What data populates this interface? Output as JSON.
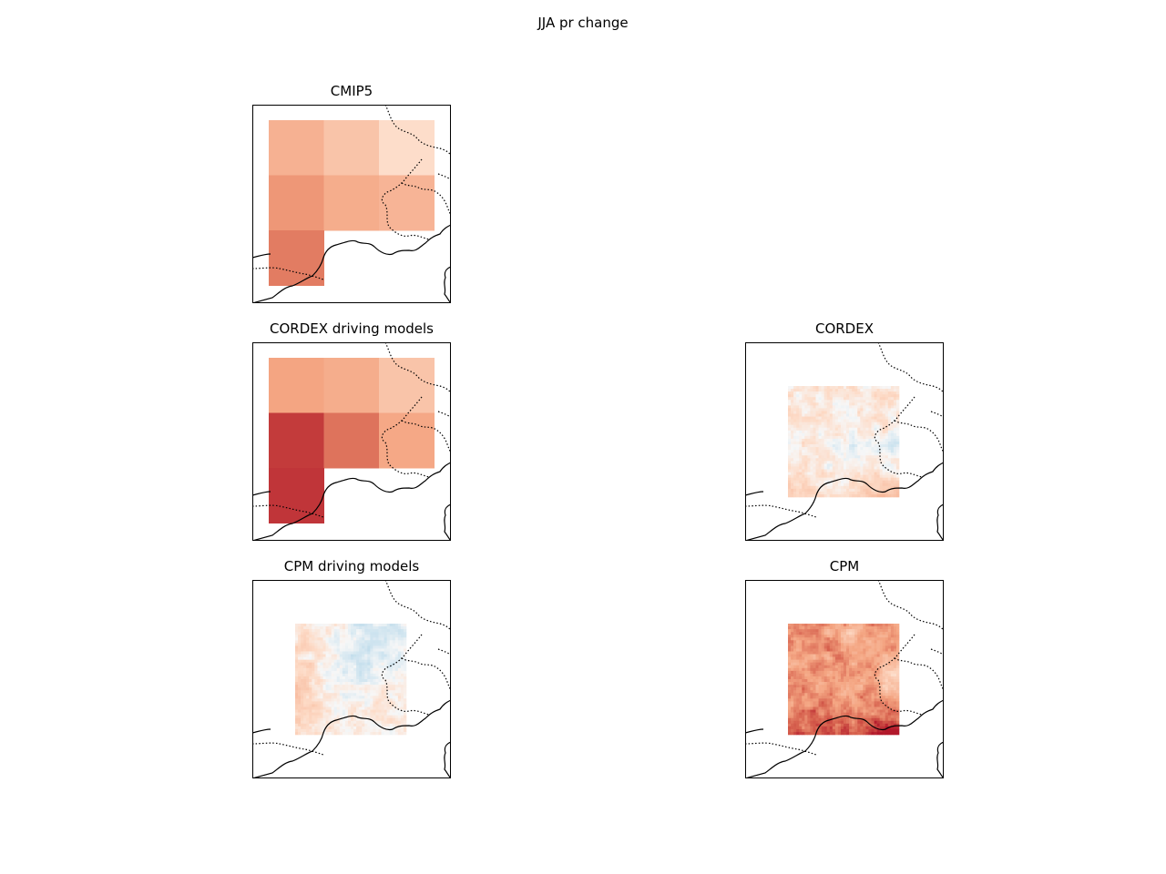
{
  "figure": {
    "title": "JJA pr change"
  },
  "colormap": {
    "name": "RdBu_r",
    "red": "#b2182b",
    "light_red": "#f4a582",
    "neutral": "#f7f7f7",
    "light_blue": "#92c5de",
    "blue": "#2166ac"
  },
  "chart_data": [
    {
      "type": "heatmap",
      "title": "CMIP5",
      "grid": false,
      "rows": 3,
      "cols": 3,
      "values": [
        [
          0.42,
          0.3,
          0.14
        ],
        [
          0.55,
          0.45,
          0.4
        ],
        [
          0.65,
          null,
          null
        ]
      ]
    },
    {
      "type": "heatmap",
      "title": "CORDEX driving models",
      "grid": false,
      "rows": 3,
      "cols": 3,
      "values": [
        [
          0.5,
          0.45,
          0.3
        ],
        [
          0.88,
          0.68,
          0.48
        ],
        [
          0.9,
          null,
          null
        ]
      ]
    },
    {
      "type": "heatmap",
      "title": "CORDEX",
      "grid": false,
      "pattern": "fine",
      "base": 0.08,
      "spread": 0.14,
      "gradient": "south-east red maximum"
    },
    {
      "type": "heatmap",
      "title": "CPM driving models",
      "grid": false,
      "pattern": "fine",
      "base": 0.06,
      "spread": 0.14,
      "gradient": "north-east blue, west red"
    },
    {
      "type": "heatmap",
      "title": "CPM",
      "grid": false,
      "pattern": "fine",
      "base": 0.55,
      "spread": 0.22,
      "gradient": "south red maximum"
    }
  ]
}
